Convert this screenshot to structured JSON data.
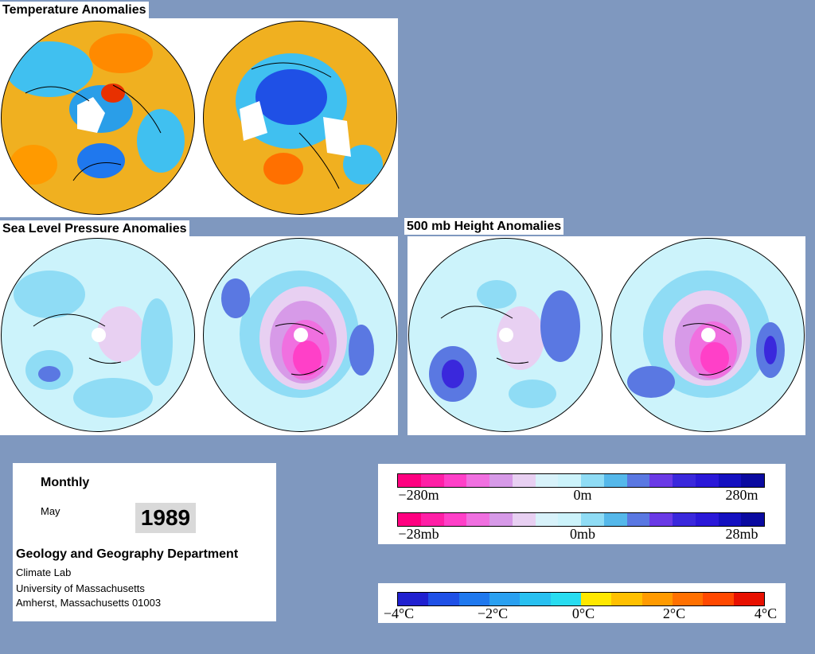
{
  "sections": {
    "temperature_title": "Temperature Anomalies",
    "slp_title": "Sea Level Pressure Anomalies",
    "height_title": "500 mb Height Anomalies"
  },
  "info": {
    "period": "Monthly",
    "month": "May",
    "year": "1989",
    "department": "Geology and Geography Department",
    "lab": "Climate Lab",
    "university": "University of Massachusetts",
    "address": "Amherst, Massachusetts 01003"
  },
  "legends": {
    "height": {
      "labels": [
        "−280m",
        "0m",
        "280m"
      ]
    },
    "pressure": {
      "labels": [
        "−28mb",
        "0mb",
        "28mb"
      ]
    },
    "temperature": {
      "labels": [
        "−4°C",
        "−2°C",
        "0°C",
        "2°C",
        "4°C"
      ]
    }
  },
  "colors": {
    "background": "#7f98bf",
    "anomaly_scale": [
      "#ff0080",
      "#ff1fa6",
      "#ff40c8",
      "#f070e0",
      "#d79ae8",
      "#e8d0f2",
      "#d8f2fa",
      "#ccf3fb",
      "#8fdcf5",
      "#55b8ea",
      "#5a78e2",
      "#6a3ae6",
      "#3a28dc",
      "#2a18d8",
      "#1410c0",
      "#0a0aa0"
    ],
    "temperature_scale": [
      "#2020d0",
      "#1f50e6",
      "#1f78ee",
      "#2aa0f0",
      "#28c0f0",
      "#28dcf0",
      "#ffe800",
      "#ffc000",
      "#ff9a00",
      "#ff7000",
      "#ff4800",
      "#e81000"
    ]
  }
}
